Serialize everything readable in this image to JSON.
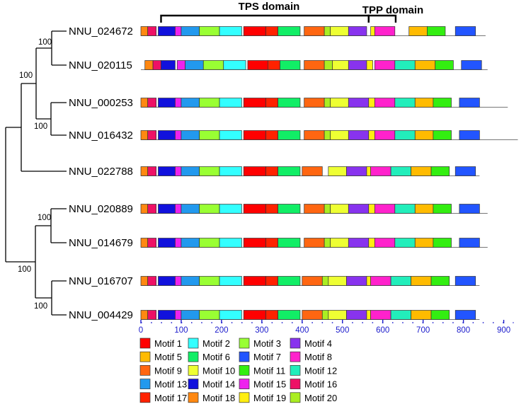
{
  "domains": [
    {
      "label": "TPS domain",
      "start": 50,
      "end": 565
    },
    {
      "label": "TPP domain",
      "start": 565,
      "end": 632
    }
  ],
  "axis": {
    "min": 0,
    "max": 900,
    "major_ticks": [
      0,
      100,
      200,
      300,
      400,
      500,
      600,
      700,
      800,
      900
    ],
    "tick_labels": [
      "0",
      "100",
      "200",
      "300",
      "400",
      "500",
      "600",
      "700",
      "800",
      "900"
    ],
    "minor_step": 25,
    "color": "#1a1acc"
  },
  "motifs": [
    {
      "id": 1,
      "label": "Motif 1",
      "color": "#ff0000"
    },
    {
      "id": 2,
      "label": "Motif 2",
      "color": "#33ffff"
    },
    {
      "id": 3,
      "label": "Motif 3",
      "color": "#99ff33"
    },
    {
      "id": 4,
      "label": "Motif 4",
      "color": "#8833ee"
    },
    {
      "id": 5,
      "label": "Motif 5",
      "color": "#ffbb00"
    },
    {
      "id": 6,
      "label": "Motif 6",
      "color": "#11ee66"
    },
    {
      "id": 7,
      "label": "Motif 7",
      "color": "#2255ff"
    },
    {
      "id": 8,
      "label": "Motif 8",
      "color": "#ff22cc"
    },
    {
      "id": 9,
      "label": "Motif 9",
      "color": "#ff6611"
    },
    {
      "id": 10,
      "label": "Motif 10",
      "color": "#eeff33"
    },
    {
      "id": 11,
      "label": "Motif 11",
      "color": "#33ee11"
    },
    {
      "id": 12,
      "label": "Motif 12",
      "color": "#22eebb"
    },
    {
      "id": 13,
      "label": "Motif 13",
      "color": "#2299ee"
    },
    {
      "id": 14,
      "label": "Motif 14",
      "color": "#1111dd"
    },
    {
      "id": 15,
      "label": "Motif 15",
      "color": "#ee22ee"
    },
    {
      "id": 16,
      "label": "Motif 16",
      "color": "#ee1166"
    },
    {
      "id": 17,
      "label": "Motif 17",
      "color": "#ff2200"
    },
    {
      "id": 18,
      "label": "Motif 18",
      "color": "#ff8811"
    },
    {
      "id": 19,
      "label": "Motif 19",
      "color": "#ffee11"
    },
    {
      "id": 20,
      "label": "Motif 20",
      "color": "#aaee22"
    }
  ],
  "tree": {
    "support_values": [
      "100",
      "100",
      "100",
      "100",
      "100",
      "100"
    ]
  },
  "genes": [
    {
      "name": "NNU_024672",
      "length": 855,
      "motifs": [
        [
          0,
          17,
          18
        ],
        [
          17,
          38,
          16
        ],
        [
          43,
          85,
          14
        ],
        [
          85,
          100,
          15
        ],
        [
          100,
          145,
          13
        ],
        [
          145,
          195,
          3
        ],
        [
          195,
          250,
          2
        ],
        [
          255,
          310,
          1
        ],
        [
          310,
          340,
          17
        ],
        [
          340,
          395,
          6
        ],
        [
          405,
          455,
          9
        ],
        [
          455,
          470,
          20
        ],
        [
          470,
          515,
          10
        ],
        [
          515,
          560,
          4
        ],
        [
          570,
          580,
          19
        ],
        [
          580,
          630,
          8
        ],
        [
          665,
          710,
          5
        ],
        [
          710,
          755,
          11
        ],
        [
          780,
          830,
          7
        ]
      ]
    },
    {
      "name": "NNU_020115",
      "length": 860,
      "motifs": [
        [
          10,
          30,
          18
        ],
        [
          30,
          50,
          16
        ],
        [
          50,
          85,
          14
        ],
        [
          90,
          110,
          15
        ],
        [
          110,
          155,
          13
        ],
        [
          155,
          205,
          3
        ],
        [
          205,
          260,
          2
        ],
        [
          265,
          315,
          1
        ],
        [
          315,
          345,
          17
        ],
        [
          345,
          395,
          6
        ],
        [
          405,
          455,
          9
        ],
        [
          455,
          475,
          20
        ],
        [
          475,
          515,
          10
        ],
        [
          515,
          560,
          4
        ],
        [
          560,
          575,
          19
        ],
        [
          580,
          630,
          8
        ],
        [
          630,
          680,
          12
        ],
        [
          680,
          730,
          5
        ],
        [
          730,
          775,
          11
        ],
        [
          795,
          845,
          7
        ]
      ]
    },
    {
      "name": "NNU_000253",
      "length": 910,
      "motifs": [
        [
          0,
          17,
          18
        ],
        [
          17,
          38,
          16
        ],
        [
          43,
          85,
          14
        ],
        [
          85,
          100,
          15
        ],
        [
          100,
          145,
          13
        ],
        [
          145,
          195,
          3
        ],
        [
          195,
          250,
          2
        ],
        [
          255,
          310,
          1
        ],
        [
          310,
          340,
          17
        ],
        [
          340,
          395,
          6
        ],
        [
          405,
          455,
          9
        ],
        [
          455,
          470,
          20
        ],
        [
          470,
          515,
          10
        ],
        [
          515,
          565,
          4
        ],
        [
          565,
          580,
          19
        ],
        [
          580,
          630,
          8
        ],
        [
          630,
          680,
          12
        ],
        [
          680,
          725,
          5
        ],
        [
          725,
          770,
          11
        ],
        [
          790,
          840,
          7
        ]
      ]
    },
    {
      "name": "NNU_016432",
      "length": 935,
      "motifs": [
        [
          0,
          17,
          18
        ],
        [
          17,
          38,
          16
        ],
        [
          43,
          85,
          14
        ],
        [
          85,
          100,
          15
        ],
        [
          100,
          145,
          13
        ],
        [
          145,
          195,
          3
        ],
        [
          195,
          250,
          2
        ],
        [
          255,
          310,
          1
        ],
        [
          310,
          340,
          17
        ],
        [
          340,
          395,
          6
        ],
        [
          405,
          455,
          9
        ],
        [
          455,
          470,
          20
        ],
        [
          470,
          515,
          10
        ],
        [
          515,
          565,
          4
        ],
        [
          565,
          580,
          19
        ],
        [
          580,
          630,
          8
        ],
        [
          630,
          680,
          12
        ],
        [
          680,
          725,
          5
        ],
        [
          725,
          770,
          11
        ],
        [
          790,
          840,
          7
        ]
      ]
    },
    {
      "name": "NNU_022788",
      "length": 840,
      "motifs": [
        [
          0,
          17,
          18
        ],
        [
          17,
          38,
          16
        ],
        [
          43,
          85,
          14
        ],
        [
          85,
          100,
          15
        ],
        [
          100,
          145,
          13
        ],
        [
          145,
          195,
          3
        ],
        [
          195,
          250,
          2
        ],
        [
          255,
          310,
          1
        ],
        [
          310,
          340,
          17
        ],
        [
          340,
          395,
          6
        ],
        [
          400,
          450,
          9
        ],
        [
          465,
          510,
          10
        ],
        [
          510,
          560,
          4
        ],
        [
          560,
          570,
          19
        ],
        [
          570,
          620,
          8
        ],
        [
          620,
          670,
          12
        ],
        [
          670,
          720,
          5
        ],
        [
          720,
          765,
          11
        ],
        [
          780,
          830,
          7
        ]
      ]
    },
    {
      "name": "NNU_020889",
      "length": 860,
      "motifs": [
        [
          0,
          17,
          18
        ],
        [
          17,
          38,
          16
        ],
        [
          43,
          85,
          14
        ],
        [
          85,
          100,
          15
        ],
        [
          100,
          145,
          13
        ],
        [
          145,
          195,
          3
        ],
        [
          195,
          250,
          2
        ],
        [
          255,
          310,
          1
        ],
        [
          310,
          340,
          17
        ],
        [
          340,
          395,
          6
        ],
        [
          405,
          455,
          9
        ],
        [
          455,
          470,
          20
        ],
        [
          470,
          515,
          10
        ],
        [
          515,
          565,
          4
        ],
        [
          565,
          580,
          19
        ],
        [
          580,
          630,
          8
        ],
        [
          630,
          680,
          12
        ],
        [
          680,
          725,
          5
        ],
        [
          725,
          770,
          11
        ],
        [
          790,
          840,
          7
        ]
      ]
    },
    {
      "name": "NNU_014679",
      "length": 860,
      "motifs": [
        [
          0,
          17,
          18
        ],
        [
          17,
          38,
          16
        ],
        [
          43,
          85,
          14
        ],
        [
          85,
          100,
          15
        ],
        [
          100,
          145,
          13
        ],
        [
          145,
          195,
          3
        ],
        [
          195,
          250,
          2
        ],
        [
          255,
          310,
          1
        ],
        [
          310,
          340,
          17
        ],
        [
          340,
          395,
          6
        ],
        [
          405,
          455,
          9
        ],
        [
          455,
          470,
          20
        ],
        [
          470,
          515,
          10
        ],
        [
          515,
          565,
          4
        ],
        [
          565,
          580,
          19
        ],
        [
          580,
          630,
          8
        ],
        [
          630,
          680,
          12
        ],
        [
          680,
          725,
          5
        ],
        [
          725,
          770,
          11
        ],
        [
          790,
          840,
          7
        ]
      ]
    },
    {
      "name": "NNU_016707",
      "length": 840,
      "motifs": [
        [
          0,
          17,
          18
        ],
        [
          17,
          38,
          16
        ],
        [
          43,
          85,
          14
        ],
        [
          85,
          100,
          15
        ],
        [
          100,
          145,
          13
        ],
        [
          145,
          195,
          3
        ],
        [
          195,
          250,
          2
        ],
        [
          255,
          310,
          1
        ],
        [
          310,
          340,
          17
        ],
        [
          340,
          395,
          6
        ],
        [
          400,
          450,
          9
        ],
        [
          450,
          465,
          20
        ],
        [
          465,
          510,
          10
        ],
        [
          510,
          560,
          4
        ],
        [
          560,
          570,
          19
        ],
        [
          570,
          620,
          8
        ],
        [
          620,
          670,
          12
        ],
        [
          670,
          720,
          5
        ],
        [
          720,
          765,
          11
        ],
        [
          780,
          830,
          7
        ]
      ]
    },
    {
      "name": "NNU_004429",
      "length": 840,
      "motifs": [
        [
          0,
          17,
          18
        ],
        [
          17,
          38,
          16
        ],
        [
          43,
          85,
          14
        ],
        [
          85,
          100,
          15
        ],
        [
          100,
          145,
          13
        ],
        [
          145,
          195,
          3
        ],
        [
          195,
          250,
          2
        ],
        [
          255,
          310,
          1
        ],
        [
          310,
          340,
          17
        ],
        [
          340,
          395,
          6
        ],
        [
          400,
          450,
          9
        ],
        [
          450,
          465,
          20
        ],
        [
          465,
          510,
          10
        ],
        [
          510,
          560,
          4
        ],
        [
          560,
          570,
          19
        ],
        [
          570,
          620,
          8
        ],
        [
          620,
          670,
          12
        ],
        [
          670,
          720,
          5
        ],
        [
          720,
          765,
          11
        ],
        [
          780,
          830,
          7
        ]
      ]
    }
  ]
}
